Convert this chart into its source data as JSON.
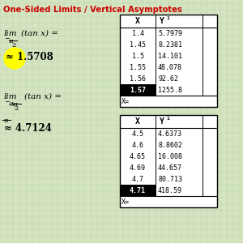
{
  "title": "One-Sided Limits / Vertical Asymptotes",
  "title_color": "#cc0000",
  "bg_color": "#d4e4c0",
  "grid_color": "#b8ccaa",
  "table1_x": [
    "1.4",
    "1.45",
    "1.5",
    "1.55",
    "1.56",
    "1.57"
  ],
  "table1_y": [
    "5.7979",
    "8.2381",
    "14.101",
    "48.078",
    "92.62",
    "1255.8"
  ],
  "table2_x": [
    "4.5",
    "4.6",
    "4.65",
    "4.69",
    "4.7",
    "4.71"
  ],
  "table2_y": [
    "4.6373",
    "8.8602",
    "16.008",
    "44.657",
    "80.713",
    "418.59"
  ],
  "limit1_approx": "≈ 1.5708",
  "limit2_approx": "≈ 4.7124",
  "highlight_color": "#ffff00"
}
